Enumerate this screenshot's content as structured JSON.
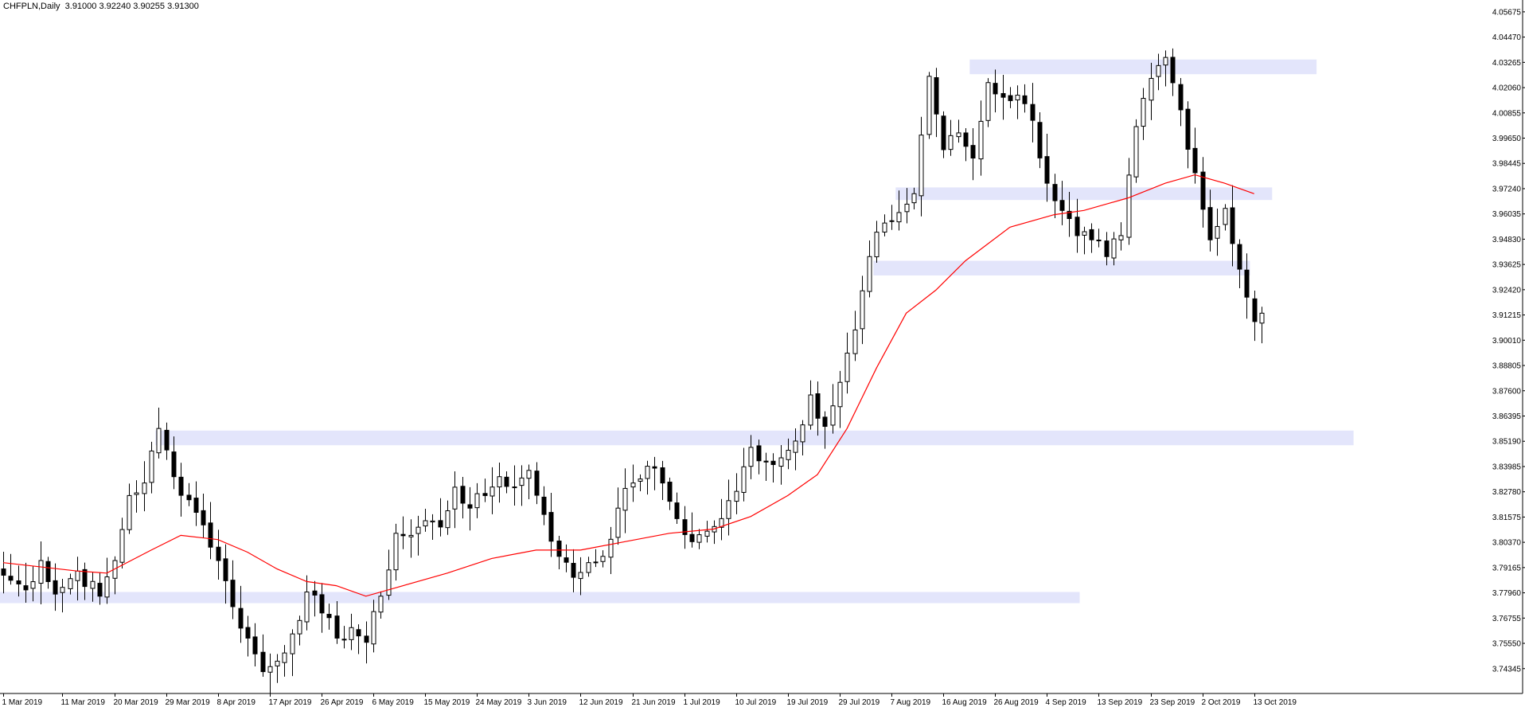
{
  "header": {
    "symbol": "CHFPLN,Daily",
    "ohlc": "3.91000 3.92240 3.90255 3.91300"
  },
  "chart_data": {
    "type": "candlestick",
    "symbol": "CHFPLN",
    "timeframe": "Daily",
    "y_ticks": [
      "4.05675",
      "4.04470",
      "4.03265",
      "4.02060",
      "4.00855",
      "3.99650",
      "3.98445",
      "3.97240",
      "3.96035",
      "3.94830",
      "3.93625",
      "3.92420",
      "3.91215",
      "3.90010",
      "3.88805",
      "3.87600",
      "3.86395",
      "3.85190",
      "3.83985",
      "3.82780",
      "3.81575",
      "3.80370",
      "3.79165",
      "3.77960",
      "3.76755",
      "3.75550",
      "3.74345"
    ],
    "ylim": [
      3.735,
      4.0605
    ],
    "x_ticks": [
      {
        "label": "1 Mar 2019",
        "index": 0
      },
      {
        "label": "11 Mar 2019",
        "index": 8
      },
      {
        "label": "20 Mar 2019",
        "index": 15
      },
      {
        "label": "29 Mar 2019",
        "index": 22
      },
      {
        "label": "8 Apr 2019",
        "index": 29
      },
      {
        "label": "17 Apr 2019",
        "index": 36
      },
      {
        "label": "26 Apr 2019",
        "index": 43
      },
      {
        "label": "6 May 2019",
        "index": 50
      },
      {
        "label": "15 May 2019",
        "index": 57
      },
      {
        "label": "24 May 2019",
        "index": 64
      },
      {
        "label": "3 Jun 2019",
        "index": 71
      },
      {
        "label": "12 Jun 2019",
        "index": 78
      },
      {
        "label": "21 Jun 2019",
        "index": 85
      },
      {
        "label": "1 Jul 2019",
        "index": 92
      },
      {
        "label": "10 Jul 2019",
        "index": 99
      },
      {
        "label": "19 Jul 2019",
        "index": 106
      },
      {
        "label": "29 Jul 2019",
        "index": 113
      },
      {
        "label": "7 Aug 2019",
        "index": 120
      },
      {
        "label": "16 Aug 2019",
        "index": 127
      },
      {
        "label": "26 Aug 2019",
        "index": 134
      },
      {
        "label": "4 Sep 2019",
        "index": 141
      },
      {
        "label": "13 Sep 2019",
        "index": 148
      },
      {
        "label": "23 Sep 2019",
        "index": 155
      },
      {
        "label": "2 Oct 2019",
        "index": 162
      },
      {
        "label": "13 Oct 2019",
        "index": 169
      }
    ],
    "bar_count": 171,
    "key_levels": [
      {
        "from_index": 131,
        "to_index": 177,
        "low": 4.027,
        "high": 4.034
      },
      {
        "from_index": 121,
        "to_index": 171,
        "low": 3.967,
        "high": 3.973
      },
      {
        "from_index": 118,
        "to_index": 168,
        "low": 3.931,
        "high": 3.938
      },
      {
        "from_index": 21,
        "to_index": 182,
        "low": 3.85,
        "high": 3.857
      },
      {
        "from_index": 0,
        "to_index": 145,
        "low": 3.776,
        "high": 3.78
      }
    ],
    "close_anchors": [
      [
        0,
        3.788
      ],
      [
        3,
        3.781
      ],
      [
        5,
        3.795
      ],
      [
        7,
        3.779
      ],
      [
        10,
        3.79
      ],
      [
        13,
        3.778
      ],
      [
        15,
        3.795
      ],
      [
        17,
        3.826
      ],
      [
        19,
        3.832
      ],
      [
        21,
        3.858
      ],
      [
        23,
        3.835
      ],
      [
        25,
        3.824
      ],
      [
        27,
        3.812
      ],
      [
        29,
        3.795
      ],
      [
        31,
        3.773
      ],
      [
        33,
        3.758
      ],
      [
        35,
        3.742
      ],
      [
        37,
        3.747
      ],
      [
        39,
        3.76
      ],
      [
        41,
        3.78
      ],
      [
        43,
        3.77
      ],
      [
        45,
        3.758
      ],
      [
        47,
        3.763
      ],
      [
        49,
        3.756
      ],
      [
        51,
        3.778
      ],
      [
        53,
        3.808
      ],
      [
        55,
        3.807
      ],
      [
        57,
        3.814
      ],
      [
        59,
        3.811
      ],
      [
        61,
        3.83
      ],
      [
        63,
        3.82
      ],
      [
        65,
        3.826
      ],
      [
        67,
        3.835
      ],
      [
        69,
        3.83
      ],
      [
        71,
        3.838
      ],
      [
        73,
        3.817
      ],
      [
        75,
        3.797
      ],
      [
        77,
        3.787
      ],
      [
        79,
        3.794
      ],
      [
        81,
        3.797
      ],
      [
        83,
        3.82
      ],
      [
        85,
        3.832
      ],
      [
        87,
        3.84
      ],
      [
        89,
        3.832
      ],
      [
        91,
        3.815
      ],
      [
        93,
        3.804
      ],
      [
        95,
        3.809
      ],
      [
        97,
        3.815
      ],
      [
        99,
        3.828
      ],
      [
        101,
        3.849
      ],
      [
        103,
        3.842
      ],
      [
        105,
        3.844
      ],
      [
        107,
        3.852
      ],
      [
        109,
        3.874
      ],
      [
        111,
        3.859
      ],
      [
        113,
        3.88
      ],
      [
        115,
        3.905
      ],
      [
        117,
        3.94
      ],
      [
        119,
        3.956
      ],
      [
        121,
        3.961
      ],
      [
        123,
        3.97
      ],
      [
        125,
        4.026
      ],
      [
        127,
        3.991
      ],
      [
        129,
        3.999
      ],
      [
        131,
        3.987
      ],
      [
        133,
        4.023
      ],
      [
        135,
        4.016
      ],
      [
        137,
        4.017
      ],
      [
        139,
        4.005
      ],
      [
        141,
        3.975
      ],
      [
        143,
        3.962
      ],
      [
        145,
        3.95
      ],
      [
        147,
        3.948
      ],
      [
        149,
        3.94
      ],
      [
        151,
        3.95
      ],
      [
        153,
        4.002
      ],
      [
        155,
        4.025
      ],
      [
        157,
        4.035
      ],
      [
        159,
        4.01
      ],
      [
        161,
        3.98
      ],
      [
        163,
        3.948
      ],
      [
        165,
        3.963
      ],
      [
        167,
        3.934
      ],
      [
        169,
        3.909
      ],
      [
        170,
        3.913
      ]
    ],
    "ma_series": {
      "color": "#ff0000",
      "anchors": [
        [
          0,
          3.794
        ],
        [
          10,
          3.79
        ],
        [
          14,
          3.789
        ],
        [
          20,
          3.8
        ],
        [
          24,
          3.807
        ],
        [
          29,
          3.805
        ],
        [
          33,
          3.799
        ],
        [
          37,
          3.791
        ],
        [
          41,
          3.785
        ],
        [
          45,
          3.783
        ],
        [
          49,
          3.778
        ],
        [
          53,
          3.782
        ],
        [
          60,
          3.789
        ],
        [
          66,
          3.796
        ],
        [
          72,
          3.8
        ],
        [
          78,
          3.8
        ],
        [
          84,
          3.804
        ],
        [
          90,
          3.808
        ],
        [
          96,
          3.81
        ],
        [
          101,
          3.816
        ],
        [
          106,
          3.826
        ],
        [
          110,
          3.836
        ],
        [
          114,
          3.858
        ],
        [
          118,
          3.887
        ],
        [
          122,
          3.913
        ],
        [
          126,
          3.924
        ],
        [
          130,
          3.938
        ],
        [
          136,
          3.954
        ],
        [
          142,
          3.96
        ],
        [
          146,
          3.962
        ],
        [
          152,
          3.968
        ],
        [
          157,
          3.975
        ],
        [
          161,
          3.979
        ],
        [
          165,
          3.975
        ],
        [
          169,
          3.97
        ]
      ]
    },
    "colors": {
      "bull_body": "#ffffff",
      "bear_body": "#000000",
      "wick": "#000000",
      "level_band": "#e3e5fb",
      "axis": "#000000"
    }
  }
}
